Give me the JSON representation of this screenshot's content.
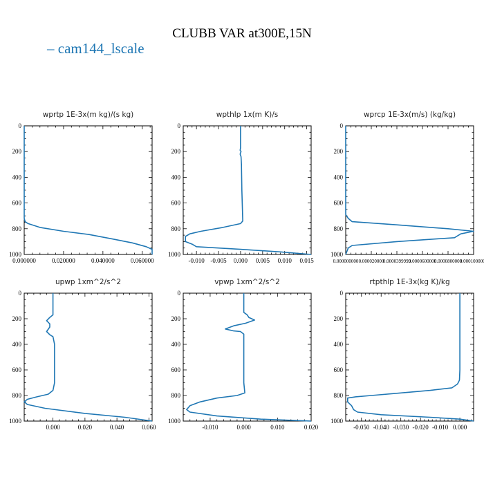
{
  "title": "CLUBB VAR at300E,15N",
  "legend": {
    "label": "cam144_lscale",
    "color": "#1f77b4"
  },
  "chart_data": [
    {
      "type": "line",
      "title": "wprtp   1E-3x(m kg)/(s kg)",
      "xlim": [
        0,
        0.065
      ],
      "ylim": [
        1000,
        0
      ],
      "xticks": [
        0,
        0.02,
        0.04,
        0.06
      ],
      "xtick_labels": [
        "0.000000",
        "0.020000",
        "0.040000",
        "0.060000"
      ],
      "yticks": [
        0,
        200,
        400,
        600,
        800,
        1000
      ],
      "series": [
        {
          "x": [
            0,
            0,
            0.0005,
            0.002,
            0.008,
            0.02,
            0.033,
            0.045,
            0.055,
            0.062,
            0.065,
            0.065
          ],
          "y": [
            0,
            720,
            745,
            760,
            790,
            820,
            845,
            880,
            910,
            940,
            960,
            1000
          ]
        }
      ]
    },
    {
      "type": "line",
      "title": "wpthlp   1x(m K)/s",
      "xlim": [
        -0.013,
        0.016
      ],
      "ylim": [
        1000,
        0
      ],
      "xticks": [
        -0.01,
        -0.005,
        0,
        0.005,
        0.01,
        0.015
      ],
      "xtick_labels": [
        "-0.010",
        "-0.005",
        "0.000",
        "0.005",
        "0.010",
        "0.015"
      ],
      "yticks": [
        0,
        200,
        400,
        600,
        800,
        1000
      ],
      "series": [
        {
          "x": [
            0,
            0,
            -0.0001,
            0.0001,
            -0.0001,
            0.0001,
            0.0002,
            0.0003,
            0.0005,
            0,
            -0.004,
            -0.009,
            -0.0115,
            -0.0125,
            -0.0125,
            -0.011,
            -0.01,
            0,
            0.009,
            0.016
          ],
          "y": [
            0,
            170,
            190,
            200,
            220,
            240,
            300,
            500,
            740,
            760,
            790,
            820,
            840,
            860,
            900,
            920,
            940,
            960,
            980,
            1000
          ]
        }
      ]
    },
    {
      "type": "line",
      "title": "wprcp   1E-3x(m/s) (kg/kg)",
      "xlim": [
        0,
        0.0001
      ],
      "ylim": [
        1000,
        0
      ],
      "xticks": [
        0,
        2e-05,
        4e-05,
        6e-05,
        8e-05,
        0.0001
      ],
      "xtick_labels": [
        "0.000000000",
        "0.000020000",
        "0.0000399999",
        "0.0000600000",
        "0.0000800000",
        "0.0001000004"
      ],
      "yticks": [
        0,
        200,
        400,
        600,
        800,
        1000
      ],
      "series": [
        {
          "x": [
            0,
            0,
            2e-06,
            5e-06,
            4e-05,
            8e-05,
            0.0001,
            9e-05,
            8.5e-05,
            4e-05,
            5e-06,
            2e-06,
            0
          ],
          "y": [
            0,
            690,
            720,
            745,
            770,
            800,
            820,
            840,
            870,
            900,
            930,
            950,
            1000
          ]
        }
      ]
    },
    {
      "type": "line",
      "title": "upwp   1xm^2/s^2",
      "xlim": [
        -0.018,
        0.062
      ],
      "ylim": [
        1000,
        0
      ],
      "xticks": [
        0,
        0.02,
        0.04,
        0.06
      ],
      "xtick_labels": [
        "0.000",
        "0.020",
        "0.040",
        "0.060"
      ],
      "yticks": [
        0,
        200,
        400,
        600,
        800,
        1000
      ],
      "series": [
        {
          "x": [
            0,
            0,
            -0.002,
            -0.004,
            -0.002,
            -0.002,
            -0.004,
            -0.002,
            0,
            0.001,
            0.001,
            0,
            -0.003,
            -0.01,
            -0.016,
            -0.018,
            -0.016,
            -0.005,
            0.02,
            0.045,
            0.062
          ],
          "y": [
            0,
            170,
            190,
            215,
            240,
            265,
            300,
            325,
            340,
            400,
            700,
            760,
            790,
            810,
            830,
            850,
            870,
            900,
            940,
            970,
            1000
          ]
        }
      ]
    },
    {
      "type": "line",
      "title": "vpwp   1xm^2/s^2",
      "xlim": [
        -0.018,
        0.02
      ],
      "ylim": [
        1000,
        0
      ],
      "xticks": [
        -0.01,
        0,
        0.01,
        0.02
      ],
      "xtick_labels": [
        "-0.010",
        "0.000",
        "0.010",
        "0.020"
      ],
      "yticks": [
        0,
        200,
        400,
        600,
        800,
        1000
      ],
      "series": [
        {
          "x": [
            0,
            0,
            0.001,
            0.0015,
            0.0032,
            0.0005,
            -0.003,
            -0.0055,
            -0.003,
            -0.001,
            0,
            0,
            0,
            0.0003,
            -0.002,
            -0.008,
            -0.013,
            -0.016,
            -0.017,
            -0.016,
            -0.008,
            0.005,
            0.02
          ],
          "y": [
            0,
            150,
            170,
            190,
            210,
            235,
            255,
            280,
            295,
            300,
            320,
            500,
            700,
            780,
            800,
            820,
            850,
            880,
            910,
            930,
            960,
            985,
            1000
          ]
        }
      ]
    },
    {
      "type": "line",
      "title": "rtpthlp   1E-3x(kg K)/kg",
      "xlim": [
        -0.058,
        0.007
      ],
      "ylim": [
        1000,
        0
      ],
      "xticks": [
        -0.05,
        -0.04,
        -0.03,
        -0.02,
        -0.01,
        0
      ],
      "xtick_labels": [
        "-0.050",
        "-0.040",
        "-0.030",
        "-0.020",
        "-0.010",
        "0.000"
      ],
      "yticks": [
        0,
        200,
        400,
        600,
        800,
        1000
      ],
      "series": [
        {
          "x": [
            0,
            0,
            -0.0002,
            -0.0012,
            -0.004,
            -0.015,
            -0.03,
            -0.045,
            -0.053,
            -0.057,
            -0.057,
            -0.055,
            -0.054,
            -0.052,
            -0.04,
            -0.015,
            0,
            0.007
          ],
          "y": [
            0,
            600,
            680,
            710,
            740,
            760,
            780,
            800,
            810,
            820,
            850,
            880,
            910,
            930,
            950,
            970,
            985,
            1000
          ]
        }
      ]
    }
  ]
}
